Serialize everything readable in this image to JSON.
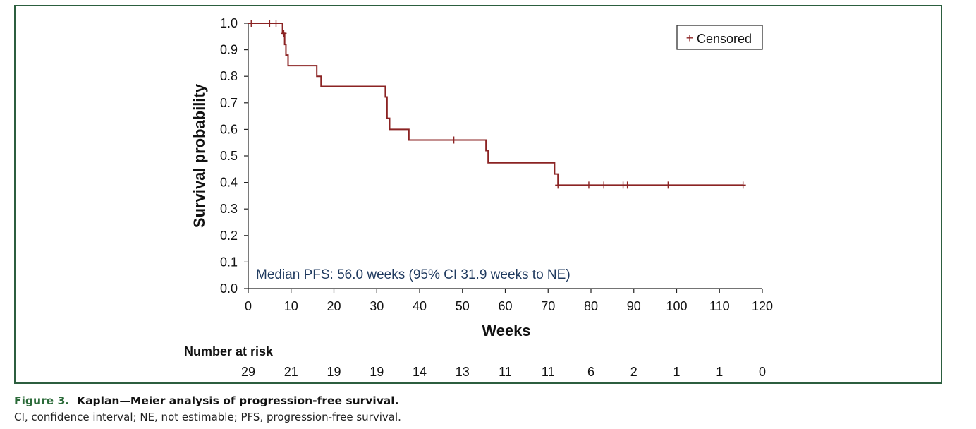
{
  "colors": {
    "frame": "#2c5e3f",
    "curve": "#8b2323",
    "annotation": "#1f3a5f",
    "caption_figure": "#2c6b3a"
  },
  "chart_data": {
    "type": "line",
    "subtype": "kaplan-meier-step",
    "ylabel": "Survival probability",
    "xlabel": "Weeks",
    "xlim": [
      0,
      120
    ],
    "ylim": [
      0,
      1.0
    ],
    "x_ticks": [
      0,
      10,
      20,
      30,
      40,
      50,
      60,
      70,
      80,
      90,
      100,
      110,
      120
    ],
    "y_ticks": [
      0.0,
      0.1,
      0.2,
      0.3,
      0.4,
      0.5,
      0.6,
      0.7,
      0.8,
      0.9,
      1.0
    ],
    "y_tick_labels": [
      "0.0",
      "0.1",
      "0.2",
      "0.3",
      "0.4",
      "0.5",
      "0.6",
      "0.7",
      "0.8",
      "0.9",
      "1.0"
    ],
    "grid": false,
    "series": [
      {
        "name": "Progression-free survival",
        "steps": [
          {
            "x": 0,
            "y": 1.0
          },
          {
            "x": 8.0,
            "y": 0.962
          },
          {
            "x": 8.5,
            "y": 0.92
          },
          {
            "x": 8.8,
            "y": 0.88
          },
          {
            "x": 9.3,
            "y": 0.84
          },
          {
            "x": 16.0,
            "y": 0.8
          },
          {
            "x": 17.0,
            "y": 0.762
          },
          {
            "x": 32.0,
            "y": 0.722
          },
          {
            "x": 32.4,
            "y": 0.642
          },
          {
            "x": 33.0,
            "y": 0.6
          },
          {
            "x": 37.5,
            "y": 0.56
          },
          {
            "x": 55.5,
            "y": 0.52
          },
          {
            "x": 56.0,
            "y": 0.474
          },
          {
            "x": 71.5,
            "y": 0.432
          },
          {
            "x": 72.3,
            "y": 0.39
          },
          {
            "x": 115.5,
            "y": 0.39
          }
        ],
        "censored": [
          {
            "x": 0.7,
            "y": 1.0
          },
          {
            "x": 5.0,
            "y": 1.0
          },
          {
            "x": 6.5,
            "y": 1.0
          },
          {
            "x": 8.3,
            "y": 0.962
          },
          {
            "x": 48.0,
            "y": 0.56
          },
          {
            "x": 72.3,
            "y": 0.39
          },
          {
            "x": 79.5,
            "y": 0.39
          },
          {
            "x": 83.0,
            "y": 0.39
          },
          {
            "x": 87.5,
            "y": 0.39
          },
          {
            "x": 88.5,
            "y": 0.39
          },
          {
            "x": 98.0,
            "y": 0.39
          },
          {
            "x": 115.5,
            "y": 0.39
          }
        ]
      }
    ],
    "legend": {
      "symbol": "+",
      "label": "Censored",
      "placement": "top-right"
    },
    "annotation": "Median PFS: 56.0 weeks (95% CI 31.9 weeks to NE)",
    "risk_table": {
      "title": "Number at risk",
      "weeks": [
        0,
        10,
        20,
        30,
        40,
        50,
        60,
        70,
        80,
        90,
        100,
        110,
        120
      ],
      "counts": [
        29,
        21,
        19,
        19,
        14,
        13,
        11,
        11,
        6,
        2,
        1,
        1,
        0
      ]
    }
  },
  "caption": {
    "figure_label": "Figure 3.",
    "title": "Kaplan—Meier analysis of progression-free survival.",
    "note": "CI, confidence interval; NE, not estimable; PFS, progression-free survival."
  }
}
